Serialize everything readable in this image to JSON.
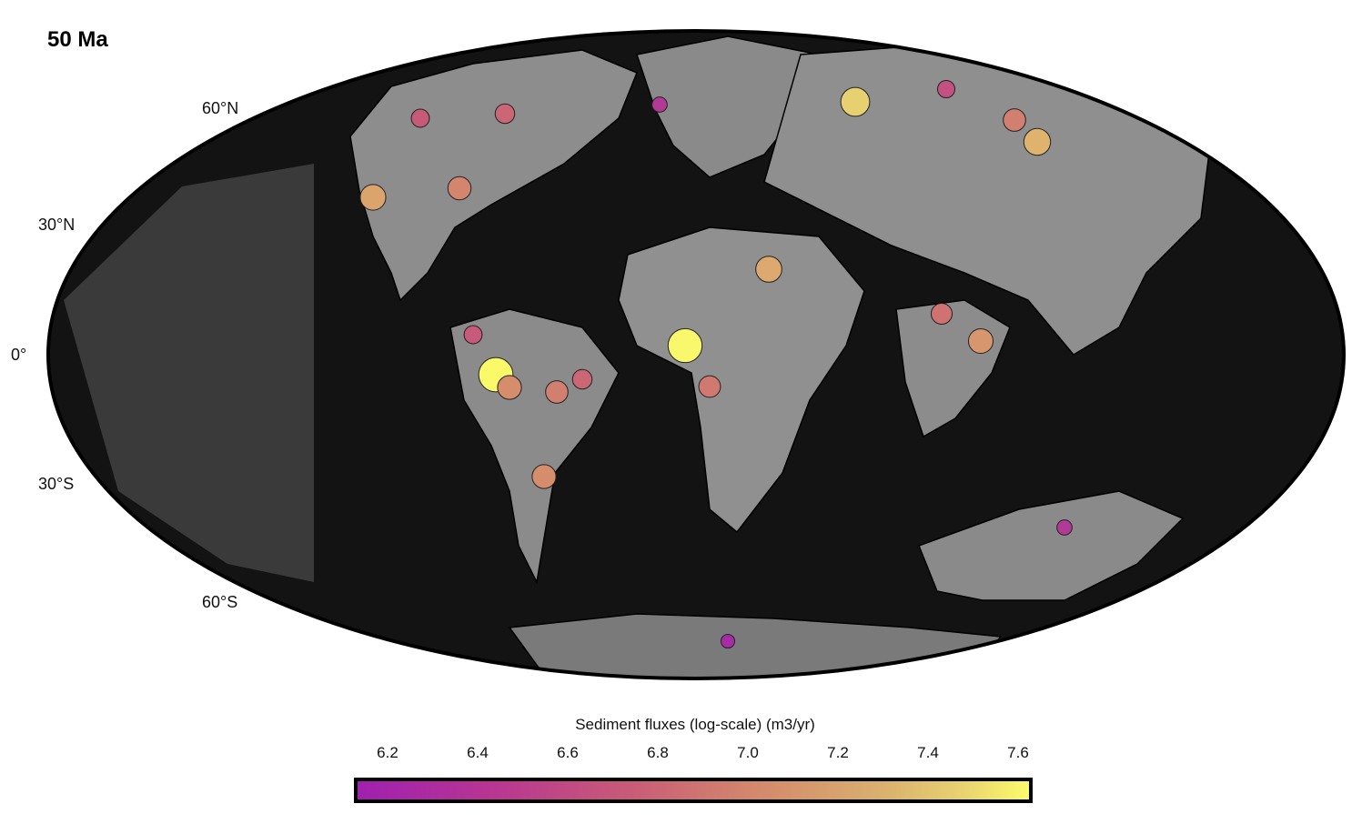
{
  "title": "50 Ma",
  "lat_labels": [
    "60°N",
    "30°N",
    "0°",
    "30°S",
    "60°S"
  ],
  "colorbar": {
    "label": "Sediment fluxes (log-scale) (m3/yr)",
    "ticks": [
      "6.2",
      "6.4",
      "6.6",
      "6.8",
      "7.0",
      "7.2",
      "7.4",
      "7.6"
    ],
    "range": [
      6.13,
      7.64
    ],
    "colors": [
      "#a020b0",
      "#c85a78",
      "#d48a6c",
      "#e8d270",
      "#fbfb6a"
    ]
  },
  "map": {
    "projection": "Mollweide",
    "background": "paleo-topography (grayscale)",
    "ocean_color": "#111111",
    "land_color": "#8a8a8a",
    "point_flux_values": [
      7.62,
      7.6,
      7.25,
      7.05,
      7.1,
      7.02,
      6.95,
      6.9,
      6.9,
      6.85,
      6.8,
      6.8,
      6.75,
      6.7,
      6.6,
      6.6,
      6.5,
      6.5,
      6.45,
      6.3,
      6.3,
      6.2
    ]
  }
}
